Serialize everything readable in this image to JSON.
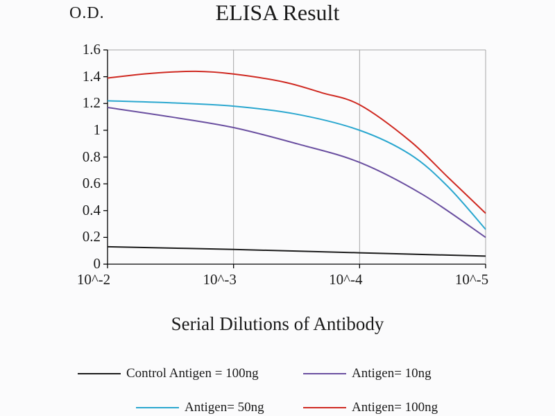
{
  "chart_data": {
    "type": "line",
    "title": "ELISA Result",
    "ylabel": "O.D.",
    "xlabel": "Serial Dilutions of Antibody",
    "x_ticklabels": [
      "10^-2",
      "10^-3",
      "10^-4",
      "10^-5"
    ],
    "y_ticks": [
      0,
      0.2,
      0.4,
      0.6,
      0.8,
      1,
      1.2,
      1.4,
      1.6
    ],
    "y_ticklabels": [
      "0",
      "0.2",
      "0.4",
      "0.6",
      "0.8",
      "1",
      "1.2",
      "1.4",
      "1.6"
    ],
    "ylim": [
      0,
      1.6
    ],
    "grid": "vertical gridlines at each x tick, boxed plot area",
    "legend_position": "bottom",
    "colors": {
      "axis": "#000000",
      "gridline": "#a6a6a6",
      "background": "#ffffff"
    },
    "series": [
      {
        "name": "Control Antigen = 100ng",
        "color": "#1a1a1a",
        "values": [
          0.13,
          0.11,
          0.09,
          0.06
        ],
        "points": [
          [
            0,
            0.13
          ],
          [
            1,
            0.11
          ],
          [
            2,
            0.085
          ],
          [
            3,
            0.06
          ]
        ]
      },
      {
        "name": "Antigen= 10ng",
        "color": "#6a4fa0",
        "values": [
          1.17,
          1.02,
          0.76,
          0.2
        ],
        "points": [
          [
            0,
            1.17
          ],
          [
            0.5,
            1.1
          ],
          [
            1,
            1.02
          ],
          [
            1.5,
            0.9
          ],
          [
            2,
            0.76
          ],
          [
            2.5,
            0.52
          ],
          [
            3,
            0.2
          ]
        ]
      },
      {
        "name": "Antigen= 50ng",
        "color": "#2aa7cf",
        "values": [
          1.22,
          1.18,
          1.0,
          0.26
        ],
        "points": [
          [
            0,
            1.22
          ],
          [
            0.5,
            1.205
          ],
          [
            1,
            1.18
          ],
          [
            1.5,
            1.12
          ],
          [
            2,
            1.0
          ],
          [
            2.4,
            0.82
          ],
          [
            2.7,
            0.58
          ],
          [
            3,
            0.26
          ]
        ]
      },
      {
        "name": "Antigen= 100ng",
        "color": "#cf2921",
        "values": [
          1.39,
          1.42,
          1.19,
          0.38
        ],
        "points": [
          [
            0,
            1.39
          ],
          [
            0.35,
            1.425
          ],
          [
            0.7,
            1.44
          ],
          [
            1,
            1.42
          ],
          [
            1.4,
            1.36
          ],
          [
            1.7,
            1.28
          ],
          [
            2,
            1.19
          ],
          [
            2.4,
            0.92
          ],
          [
            2.7,
            0.65
          ],
          [
            3,
            0.38
          ]
        ]
      }
    ]
  }
}
